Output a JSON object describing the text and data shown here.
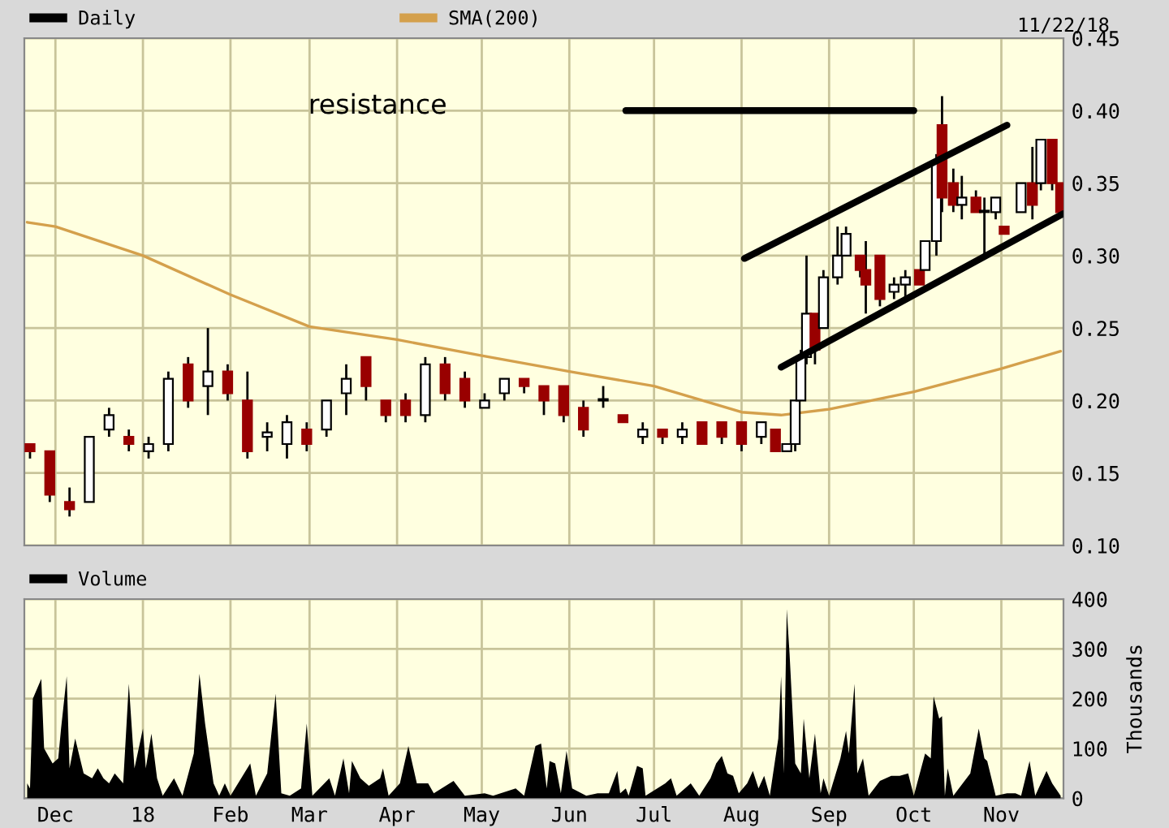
{
  "chart_data": [
    {
      "type": "candlestick",
      "xlim": [
        "2017-11-20",
        "2018-11-23"
      ],
      "ylim": [
        0.1,
        0.45
      ],
      "yticks": [
        {
          "value": 0.1,
          "label": "0.10"
        },
        0.15,
        {
          "value": 0.2,
          "label": "0.20"
        },
        0.25,
        {
          "value": 0.3,
          "label": "0.30"
        },
        0.35,
        {
          "value": 0.4,
          "label": "0.40"
        },
        0.45
      ],
      "xticks": [
        {
          "value": "2017-12-01",
          "label": null
        },
        {
          "value": "2018-01-01",
          "label": null
        },
        {
          "value": "2018-02-01",
          "label": null
        },
        {
          "value": "2018-03-01",
          "label": null
        },
        {
          "value": "2018-04-01",
          "label": null
        },
        {
          "value": "2018-05-01",
          "label": null
        },
        {
          "value": "2018-06-01",
          "label": null
        },
        {
          "value": "2018-07-01",
          "label": null
        },
        {
          "value": "2018-08-01",
          "label": null
        },
        {
          "value": "2018-09-01",
          "label": null
        },
        {
          "value": "2018-10-01",
          "label": null
        },
        {
          "value": "2018-11-01",
          "label": null
        }
      ],
      "tick_labels": "y",
      "grid": true,
      "legend": "top left",
      "annotations": [
        "11/22/18",
        "resistance"
      ],
      "series": [
        {
          "name": "Daily",
          "type": "candlestick",
          "colors": [
            "#990000",
            "#990000",
            "#990000",
            "#ffffff",
            "#ffffff",
            "#990000",
            "#ffffff",
            "#ffffff",
            "#990000",
            "#ffffff",
            "#990000",
            "#990000",
            "#ffffff",
            "#ffffff",
            "#990000",
            "#ffffff",
            "#ffffff",
            "#990000",
            "#990000",
            "#990000",
            "#ffffff",
            "#990000",
            "#990000",
            "#ffffff",
            "#ffffff",
            "#990000",
            "#990000",
            "#990000",
            "#990000",
            "#ffffff",
            "#990000",
            "#ffffff",
            "#990000",
            "#ffffff",
            "#990000",
            "#990000",
            "#990000",
            "#ffffff",
            "#990000",
            "#ffffff",
            "#ffffff",
            "#ffffff",
            "#ffffff",
            "#990000",
            "#ffffff",
            "#ffffff",
            "#ffffff",
            "#990000",
            "#990000",
            "#990000",
            "#ffffff",
            "#ffffff",
            "#990000",
            "#ffffff",
            "#ffffff",
            "#990000",
            "#990000",
            "#ffffff",
            "#990000",
            "#ffffff",
            "#ffffff",
            "#990000",
            "#ffffff",
            "#990000",
            "#ffffff",
            "#990000",
            "#990000"
          ],
          "x": [
            "2017-11-22",
            "2017-11-29",
            "2017-12-06",
            "2017-12-13",
            "2017-12-20",
            "2017-12-27",
            "2018-01-03",
            "2018-01-10",
            "2018-01-17",
            "2018-01-24",
            "2018-01-31",
            "2018-02-07",
            "2018-02-14",
            "2018-02-21",
            "2018-02-28",
            "2018-03-07",
            "2018-03-14",
            "2018-03-21",
            "2018-03-28",
            "2018-04-04",
            "2018-04-11",
            "2018-04-18",
            "2018-04-25",
            "2018-05-02",
            "2018-05-09",
            "2018-05-16",
            "2018-05-23",
            "2018-05-30",
            "2018-06-06",
            "2018-06-13",
            "2018-06-20",
            "2018-06-27",
            "2018-07-04",
            "2018-07-11",
            "2018-07-18",
            "2018-07-25",
            "2018-08-01",
            "2018-08-08",
            "2018-08-13",
            "2018-08-17",
            "2018-08-20",
            "2018-08-22",
            "2018-08-24",
            "2018-08-27",
            "2018-08-30",
            "2018-09-04",
            "2018-09-07",
            "2018-09-12",
            "2018-09-14",
            "2018-09-19",
            "2018-09-24",
            "2018-09-28",
            "2018-10-03",
            "2018-10-05",
            "2018-10-09",
            "2018-10-11",
            "2018-10-15",
            "2018-10-18",
            "2018-10-23",
            "2018-10-26",
            "2018-10-30",
            "2018-11-02",
            "2018-11-08",
            "2018-11-12",
            "2018-11-15",
            "2018-11-19",
            "2018-11-22"
          ],
          "ohlc": [
            [
              0.17,
              0.17,
              0.16,
              0.165
            ],
            [
              0.165,
              0.165,
              0.13,
              0.135
            ],
            [
              0.13,
              0.14,
              0.12,
              0.125
            ],
            [
              0.13,
              0.175,
              0.13,
              0.175
            ],
            [
              0.18,
              0.195,
              0.175,
              0.19
            ],
            [
              0.175,
              0.18,
              0.165,
              0.17
            ],
            [
              0.165,
              0.175,
              0.16,
              0.17
            ],
            [
              0.17,
              0.22,
              0.165,
              0.215
            ],
            [
              0.225,
              0.23,
              0.195,
              0.2
            ],
            [
              0.21,
              0.25,
              0.19,
              0.22
            ],
            [
              0.22,
              0.225,
              0.2,
              0.205
            ],
            [
              0.2,
              0.22,
              0.16,
              0.165
            ],
            [
              0.175,
              0.185,
              0.165,
              0.178
            ],
            [
              0.17,
              0.19,
              0.16,
              0.185
            ],
            [
              0.18,
              0.185,
              0.165,
              0.17
            ],
            [
              0.18,
              0.2,
              0.175,
              0.2
            ],
            [
              0.205,
              0.225,
              0.19,
              0.215
            ],
            [
              0.23,
              0.23,
              0.2,
              0.21
            ],
            [
              0.2,
              0.2,
              0.185,
              0.19
            ],
            [
              0.2,
              0.205,
              0.185,
              0.19
            ],
            [
              0.19,
              0.23,
              0.185,
              0.225
            ],
            [
              0.225,
              0.23,
              0.2,
              0.205
            ],
            [
              0.215,
              0.22,
              0.195,
              0.2
            ],
            [
              0.195,
              0.205,
              0.195,
              0.2
            ],
            [
              0.205,
              0.215,
              0.2,
              0.215
            ],
            [
              0.215,
              0.215,
              0.205,
              0.21
            ],
            [
              0.21,
              0.21,
              0.19,
              0.2
            ],
            [
              0.21,
              0.21,
              0.185,
              0.19
            ],
            [
              0.195,
              0.2,
              0.175,
              0.18
            ],
            [
              0.2,
              0.21,
              0.195,
              0.2
            ],
            [
              0.19,
              0.19,
              0.185,
              0.185
            ],
            [
              0.175,
              0.185,
              0.17,
              0.18
            ],
            [
              0.18,
              0.18,
              0.17,
              0.175
            ],
            [
              0.175,
              0.185,
              0.17,
              0.18
            ],
            [
              0.185,
              0.185,
              0.17,
              0.17
            ],
            [
              0.185,
              0.185,
              0.17,
              0.175
            ],
            [
              0.185,
              0.185,
              0.165,
              0.17
            ],
            [
              0.175,
              0.185,
              0.17,
              0.185
            ],
            [
              0.18,
              0.18,
              0.165,
              0.165
            ],
            [
              0.165,
              0.17,
              0.165,
              0.17
            ],
            [
              0.17,
              0.2,
              0.165,
              0.2
            ],
            [
              0.2,
              0.235,
              0.2,
              0.23
            ],
            [
              0.23,
              0.3,
              0.225,
              0.26
            ],
            [
              0.26,
              0.26,
              0.225,
              0.235
            ],
            [
              0.25,
              0.29,
              0.25,
              0.285
            ],
            [
              0.285,
              0.32,
              0.28,
              0.3
            ],
            [
              0.3,
              0.32,
              0.3,
              0.315
            ],
            [
              0.3,
              0.3,
              0.285,
              0.29
            ],
            [
              0.29,
              0.31,
              0.26,
              0.28
            ],
            [
              0.3,
              0.3,
              0.265,
              0.27
            ],
            [
              0.275,
              0.285,
              0.27,
              0.28
            ],
            [
              0.28,
              0.29,
              0.27,
              0.285
            ],
            [
              0.29,
              0.29,
              0.28,
              0.28
            ],
            [
              0.29,
              0.31,
              0.29,
              0.31
            ],
            [
              0.31,
              0.37,
              0.3,
              0.365
            ],
            [
              0.39,
              0.41,
              0.33,
              0.34
            ],
            [
              0.35,
              0.36,
              0.33,
              0.335
            ],
            [
              0.335,
              0.355,
              0.325,
              0.34
            ],
            [
              0.34,
              0.345,
              0.33,
              0.33
            ],
            [
              0.33,
              0.34,
              0.3,
              0.33
            ],
            [
              0.33,
              0.34,
              0.325,
              0.34
            ],
            [
              0.32,
              0.32,
              0.315,
              0.315
            ],
            [
              0.33,
              0.35,
              0.33,
              0.35
            ],
            [
              0.35,
              0.375,
              0.325,
              0.335
            ],
            [
              0.35,
              0.38,
              0.345,
              0.38
            ],
            [
              0.38,
              0.38,
              0.345,
              0.35
            ],
            [
              0.35,
              0.35,
              0.33,
              0.33
            ]
          ]
        },
        {
          "name": "SMA(200)",
          "type": "line",
          "color": "#d4a04c",
          "x": [
            "2017-11-21",
            "2017-12-01",
            "2018-01-01",
            "2018-02-01",
            "2018-03-01",
            "2018-04-01",
            "2018-05-01",
            "2018-06-01",
            "2018-07-01",
            "2018-08-01",
            "2018-08-15",
            "2018-09-01",
            "2018-10-01",
            "2018-11-01",
            "2018-11-22"
          ],
          "values": [
            0.323,
            0.32,
            0.3,
            0.273,
            0.251,
            0.242,
            0.231,
            0.22,
            0.21,
            0.192,
            0.19,
            0.194,
            0.206,
            0.222,
            0.234
          ]
        },
        {
          "type": "line",
          "color": "#000000",
          "x": [
            "2018-06-21",
            "2018-10-01"
          ],
          "values": [
            0.4,
            0.4
          ]
        },
        {
          "type": "line",
          "color": "#000000",
          "x": [
            "2018-08-02",
            "2018-11-03"
          ],
          "values": [
            0.298,
            0.39
          ]
        },
        {
          "type": "line",
          "color": "#000000",
          "x": [
            "2018-08-15",
            "2018-11-23"
          ],
          "values": [
            0.223,
            0.329
          ]
        }
      ]
    },
    {
      "type": "area",
      "xlim": [
        "2017-11-20",
        "2018-11-23"
      ],
      "ylim": [
        0,
        400
      ],
      "yticks": [
        0,
        100,
        200,
        300,
        400
      ],
      "ylabel": "Thousands",
      "grid": true,
      "legend": "top left",
      "xticks": [
        {
          "value": "2017-12-01",
          "label": "Dec"
        },
        {
          "value": "2018-01-01",
          "label": "18"
        },
        {
          "value": "2018-02-01",
          "label": "Feb"
        },
        {
          "value": "2018-03-01",
          "label": "Mar"
        },
        {
          "value": "2018-04-01",
          "label": "Apr"
        },
        {
          "value": "2018-05-01",
          "label": "May"
        },
        {
          "value": "2018-06-01",
          "label": "Jun"
        },
        {
          "value": "2018-07-01",
          "label": "Jul"
        },
        {
          "value": "2018-08-01",
          "label": "Aug"
        },
        {
          "value": "2018-09-01",
          "label": "Sep"
        },
        {
          "value": "2018-10-01",
          "label": "Oct"
        },
        {
          "value": "2018-11-01",
          "label": "Nov"
        }
      ],
      "series": [
        {
          "name": "Volume",
          "color": "#000000",
          "x": [
            "2017-11-21",
            "2017-11-22",
            "2017-11-23",
            "2017-11-26",
            "2017-11-27",
            "2017-11-30",
            "2017-12-02",
            "2017-12-03",
            "2017-12-05",
            "2017-12-06",
            "2017-12-08",
            "2017-12-11",
            "2017-12-14",
            "2017-12-16",
            "2017-12-18",
            "2017-12-20",
            "2017-12-22",
            "2017-12-25",
            "2017-12-27",
            "2017-12-29",
            "2018-01-01",
            "2018-01-02",
            "2018-01-04",
            "2018-01-06",
            "2018-01-08",
            "2018-01-12",
            "2018-01-15",
            "2018-01-19",
            "2018-01-21",
            "2018-01-23",
            "2018-01-26",
            "2018-01-28",
            "2018-01-30",
            "2018-02-01",
            "2018-02-08",
            "2018-02-10",
            "2018-02-14",
            "2018-02-17",
            "2018-02-19",
            "2018-02-22",
            "2018-02-26",
            "2018-02-28",
            "2018-03-02",
            "2018-03-08",
            "2018-03-10",
            "2018-03-13",
            "2018-03-15",
            "2018-03-16",
            "2018-03-19",
            "2018-03-22",
            "2018-03-26",
            "2018-03-27",
            "2018-03-29",
            "2018-04-02",
            "2018-04-05",
            "2018-04-08",
            "2018-04-12",
            "2018-04-14",
            "2018-04-21",
            "2018-04-25",
            "2018-05-02",
            "2018-05-05",
            "2018-05-13",
            "2018-05-16",
            "2018-05-20",
            "2018-05-22",
            "2018-05-24",
            "2018-05-25",
            "2018-05-27",
            "2018-05-29",
            "2018-05-31",
            "2018-06-02",
            "2018-06-07",
            "2018-06-11",
            "2018-06-15",
            "2018-06-18",
            "2018-06-19",
            "2018-06-21",
            "2018-06-22",
            "2018-06-25",
            "2018-06-27",
            "2018-06-28",
            "2018-07-05",
            "2018-07-07",
            "2018-07-09",
            "2018-07-14",
            "2018-07-17",
            "2018-07-21",
            "2018-07-23",
            "2018-07-25",
            "2018-07-27",
            "2018-07-29",
            "2018-07-31",
            "2018-08-03",
            "2018-08-05",
            "2018-08-07",
            "2018-08-09",
            "2018-08-11",
            "2018-08-14",
            "2018-08-15",
            "2018-08-16",
            "2018-08-17",
            "2018-08-18",
            "2018-08-20",
            "2018-08-22",
            "2018-08-23",
            "2018-08-25",
            "2018-08-27",
            "2018-08-29",
            "2018-08-30",
            "2018-09-01",
            "2018-09-05",
            "2018-09-07",
            "2018-09-08",
            "2018-09-10",
            "2018-09-11",
            "2018-09-13",
            "2018-09-15",
            "2018-09-19",
            "2018-09-23",
            "2018-09-26",
            "2018-09-29",
            "2018-10-01",
            "2018-10-05",
            "2018-10-07",
            "2018-10-08",
            "2018-10-10",
            "2018-10-11",
            "2018-10-12",
            "2018-10-13",
            "2018-10-15",
            "2018-10-21",
            "2018-10-24",
            "2018-10-26",
            "2018-10-27",
            "2018-10-30",
            "2018-11-03",
            "2018-11-06",
            "2018-11-08",
            "2018-11-11",
            "2018-11-13",
            "2018-11-17",
            "2018-11-19",
            "2018-11-22"
          ],
          "values": [
            30,
            20,
            200,
            240,
            100,
            70,
            80,
            140,
            245,
            60,
            120,
            50,
            40,
            60,
            40,
            30,
            50,
            30,
            230,
            60,
            140,
            60,
            130,
            40,
            5,
            40,
            5,
            90,
            250,
            150,
            30,
            5,
            30,
            5,
            70,
            5,
            50,
            210,
            10,
            5,
            20,
            150,
            5,
            40,
            5,
            80,
            10,
            75,
            40,
            25,
            40,
            60,
            5,
            30,
            105,
            30,
            30,
            10,
            35,
            5,
            10,
            5,
            20,
            5,
            105,
            110,
            20,
            75,
            70,
            10,
            95,
            20,
            5,
            10,
            10,
            55,
            10,
            20,
            5,
            65,
            60,
            5,
            30,
            40,
            5,
            30,
            5,
            40,
            70,
            85,
            50,
            45,
            10,
            30,
            55,
            20,
            45,
            5,
            120,
            245,
            50,
            380,
            290,
            70,
            50,
            160,
            40,
            130,
            10,
            40,
            5,
            80,
            135,
            90,
            230,
            50,
            80,
            5,
            35,
            45,
            45,
            50,
            5,
            90,
            80,
            205,
            160,
            165,
            5,
            60,
            5,
            50,
            140,
            80,
            75,
            5,
            10,
            10,
            5,
            75,
            5,
            55,
            30,
            5
          ]
        }
      ]
    }
  ]
}
